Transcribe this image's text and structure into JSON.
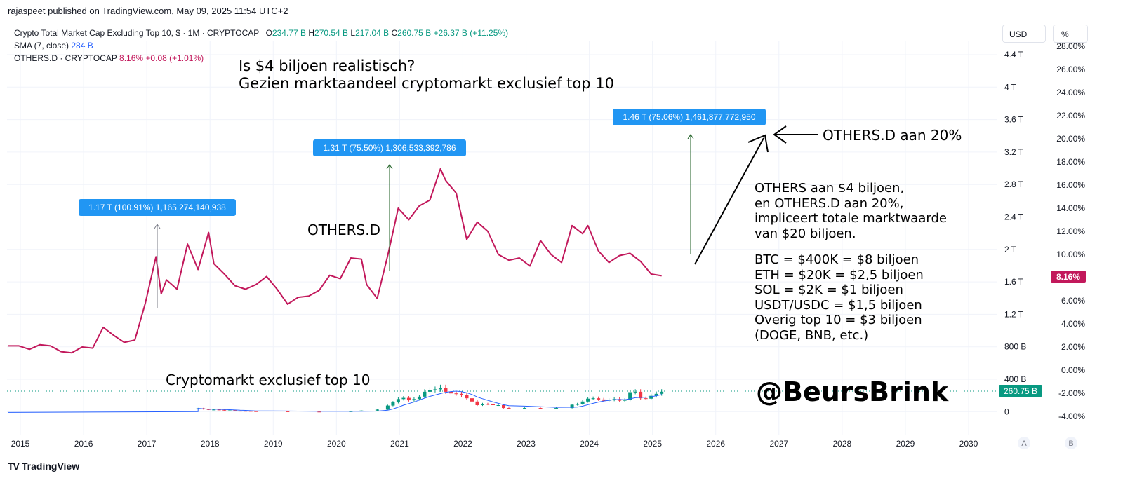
{
  "publisher": "rajaspeet published on TradingView.com, May 09, 2025 11:54 UTC+2",
  "legend": {
    "main": {
      "name": "Crypto Total Market Cap Excluding Top 10, $ · 1M · CRYPTOCAP",
      "o_label": "O",
      "o": "234.77 B",
      "h_label": "H",
      "h": "270.54 B",
      "l_label": "L",
      "l": "217.04 B",
      "c_label": "C",
      "c": "260.75 B",
      "change": "+26.37 B (+11.25%)"
    },
    "sma": {
      "name": "SMA (7, close)",
      "value": "284 B"
    },
    "others": {
      "name": "OTHERS.D · CRYPTOCAP",
      "value": "8.16%",
      "change": "+0.08 (+1.01%)"
    }
  },
  "toolbar": {
    "currency": "USD",
    "percent": "%"
  },
  "annotations": {
    "title_line1": "Is $4 biljoen realistisch?",
    "title_line2": "Gezien marktaandeel cryptomarkt exclusief top 10",
    "others_d_label": "OTHERS.D",
    "othersd_20": "OTHERS.D aan 20%",
    "right_block": [
      "OTHERS aan $4 biljoen,",
      "en OTHERS.D aan 20%,",
      "impliceert totale marktwaarde",
      "van $20 biljoen."
    ],
    "right_list": [
      "BTC = $400K = $8 biljoen",
      "ETH = $20K = $2,5 biljoen",
      "SOL = $2K = $1 biljoen",
      "USDT/USDC = $1,5 biljoen",
      "Overig top 10 = $3 biljoen",
      "(DOGE, BNB, etc.)"
    ],
    "crypto_label": "Cryptomarkt exclusief top 10",
    "handle": "@BeursBrink"
  },
  "measure_labels": [
    "1.17 T (100.91%) 1,165,274,140,938",
    "1.31 T (75.50%) 1,306,533,392,786",
    "1.46 T (75.06%) 1,461,877,772,950"
  ],
  "axis_badges": {
    "others_d": "8.16%",
    "price": "260.75 B"
  },
  "axis_toggles": [
    "A",
    "B"
  ],
  "footer": {
    "logo_mark": "TV",
    "logo_text": "TradingView"
  },
  "colors": {
    "others_line": "#c2185b",
    "up_candle": "#089981",
    "down_candle": "#f23645",
    "sma": "#2962ff",
    "label_bg": "#2196f3"
  },
  "chart_data": [
    {
      "type": "line",
      "title": "",
      "series": [
        {
          "name": "OTHERS.D · CRYPTOCAP",
          "unit": "%",
          "x": [
            "2015-01",
            "2015-03",
            "2015-05",
            "2015-07",
            "2015-09",
            "2015-11",
            "2016-01",
            "2016-03",
            "2016-05",
            "2016-07",
            "2016-09",
            "2016-11",
            "2017-01",
            "2017-03",
            "2017-05",
            "2017-06",
            "2017-07",
            "2017-09",
            "2017-11",
            "2018-01",
            "2018-03",
            "2018-04",
            "2018-06",
            "2018-08",
            "2018-10",
            "2018-12",
            "2019-02",
            "2019-04",
            "2019-06",
            "2019-08",
            "2019-10",
            "2019-12",
            "2020-02",
            "2020-04",
            "2020-06",
            "2020-08",
            "2020-09",
            "2020-11",
            "2021-01",
            "2021-03",
            "2021-05",
            "2021-07",
            "2021-09",
            "2021-11",
            "2021-12",
            "2022-02",
            "2022-04",
            "2022-06",
            "2022-08",
            "2022-10",
            "2022-12",
            "2023-02",
            "2023-04",
            "2023-06",
            "2023-08",
            "2023-10",
            "2023-12",
            "2024-02",
            "2024-03",
            "2024-05",
            "2024-07",
            "2024-09",
            "2024-11",
            "2025-01",
            "2025-03",
            "2025-05"
          ],
          "values": [
            2.1,
            2.1,
            1.8,
            2.2,
            2.1,
            1.6,
            1.5,
            2.0,
            1.9,
            3.7,
            3.0,
            2.4,
            2.6,
            5.8,
            9.8,
            6.6,
            7.8,
            7.0,
            10.9,
            8.7,
            11.9,
            9.2,
            8.3,
            7.3,
            7.0,
            7.4,
            8.1,
            7.0,
            5.7,
            6.3,
            6.4,
            6.9,
            8.2,
            7.9,
            9.7,
            9.6,
            7.4,
            6.2,
            9.9,
            14.0,
            13.0,
            14.2,
            14.7,
            17.4,
            16.4,
            15.3,
            11.3,
            12.8,
            12.0,
            10.0,
            9.5,
            9.7,
            9.0,
            11.2,
            10.0,
            9.3,
            12.5,
            11.8,
            12.5,
            10.3,
            9.3,
            9.9,
            10.1,
            9.4,
            8.3,
            8.16
          ]
        }
      ],
      "y_axis": {
        "side": "right",
        "ticks": [
          "28.00%",
          "26.00%",
          "24.00%",
          "22.00%",
          "20.00%",
          "18.00%",
          "16.00%",
          "14.00%",
          "12.00%",
          "10.00%",
          "6.00%",
          "4.00%",
          "2.00%",
          "0.00%",
          "-2.00%",
          "-4.00%"
        ]
      }
    },
    {
      "type": "candlestick",
      "title": "Crypto Total Market Cap Excluding Top 10",
      "unit": "$B",
      "sma_period": 7,
      "x": [
        "2018-01",
        "2018-02",
        "2018-03",
        "2018-04",
        "2018-05",
        "2018-06",
        "2018-07",
        "2018-08",
        "2018-09",
        "2018-10",
        "2018-11",
        "2018-12",
        "2019-06",
        "2019-12",
        "2020-06",
        "2020-08",
        "2020-11",
        "2021-01",
        "2021-02",
        "2021-03",
        "2021-04",
        "2021-05",
        "2021-06",
        "2021-07",
        "2021-08",
        "2021-09",
        "2021-10",
        "2021-11",
        "2021-12",
        "2022-01",
        "2022-02",
        "2022-03",
        "2022-04",
        "2022-05",
        "2022-06",
        "2022-07",
        "2022-08",
        "2022-09",
        "2022-10",
        "2022-11",
        "2022-12",
        "2023-03",
        "2023-06",
        "2023-09",
        "2023-12",
        "2024-01",
        "2024-02",
        "2024-03",
        "2024-04",
        "2024-05",
        "2024-06",
        "2024-07",
        "2024-08",
        "2024-09",
        "2024-10",
        "2024-11",
        "2024-12",
        "2025-01",
        "2025-02",
        "2025-03",
        "2025-04",
        "2025-05"
      ],
      "values": [
        55,
        45,
        38,
        40,
        37,
        30,
        30,
        25,
        24,
        23,
        20,
        18,
        15,
        12,
        20,
        28,
        40,
        90,
        130,
        170,
        185,
        155,
        170,
        200,
        260,
        280,
        290,
        310,
        260,
        240,
        235,
        220,
        180,
        140,
        95,
        110,
        105,
        95,
        95,
        60,
        55,
        60,
        55,
        60,
        100,
        110,
        140,
        175,
        180,
        165,
        150,
        160,
        170,
        150,
        160,
        255,
        260,
        180,
        175,
        210,
        234.77,
        260.75
      ],
      "sma_last": "284 B",
      "x_axis": [
        "2015",
        "2016",
        "2017",
        "2018",
        "2019",
        "2020",
        "2021",
        "2022",
        "2023",
        "2024",
        "2025",
        "2026",
        "2027",
        "2028",
        "2029",
        "2030"
      ],
      "y_axis": {
        "side": "right",
        "ticks": [
          "4.4 T",
          "4 T",
          "3.6 T",
          "3.2 T",
          "2.8 T",
          "2.4 T",
          "2 T",
          "1.6 T",
          "1.2 T",
          "800 B",
          "400 B",
          "0"
        ]
      }
    }
  ]
}
